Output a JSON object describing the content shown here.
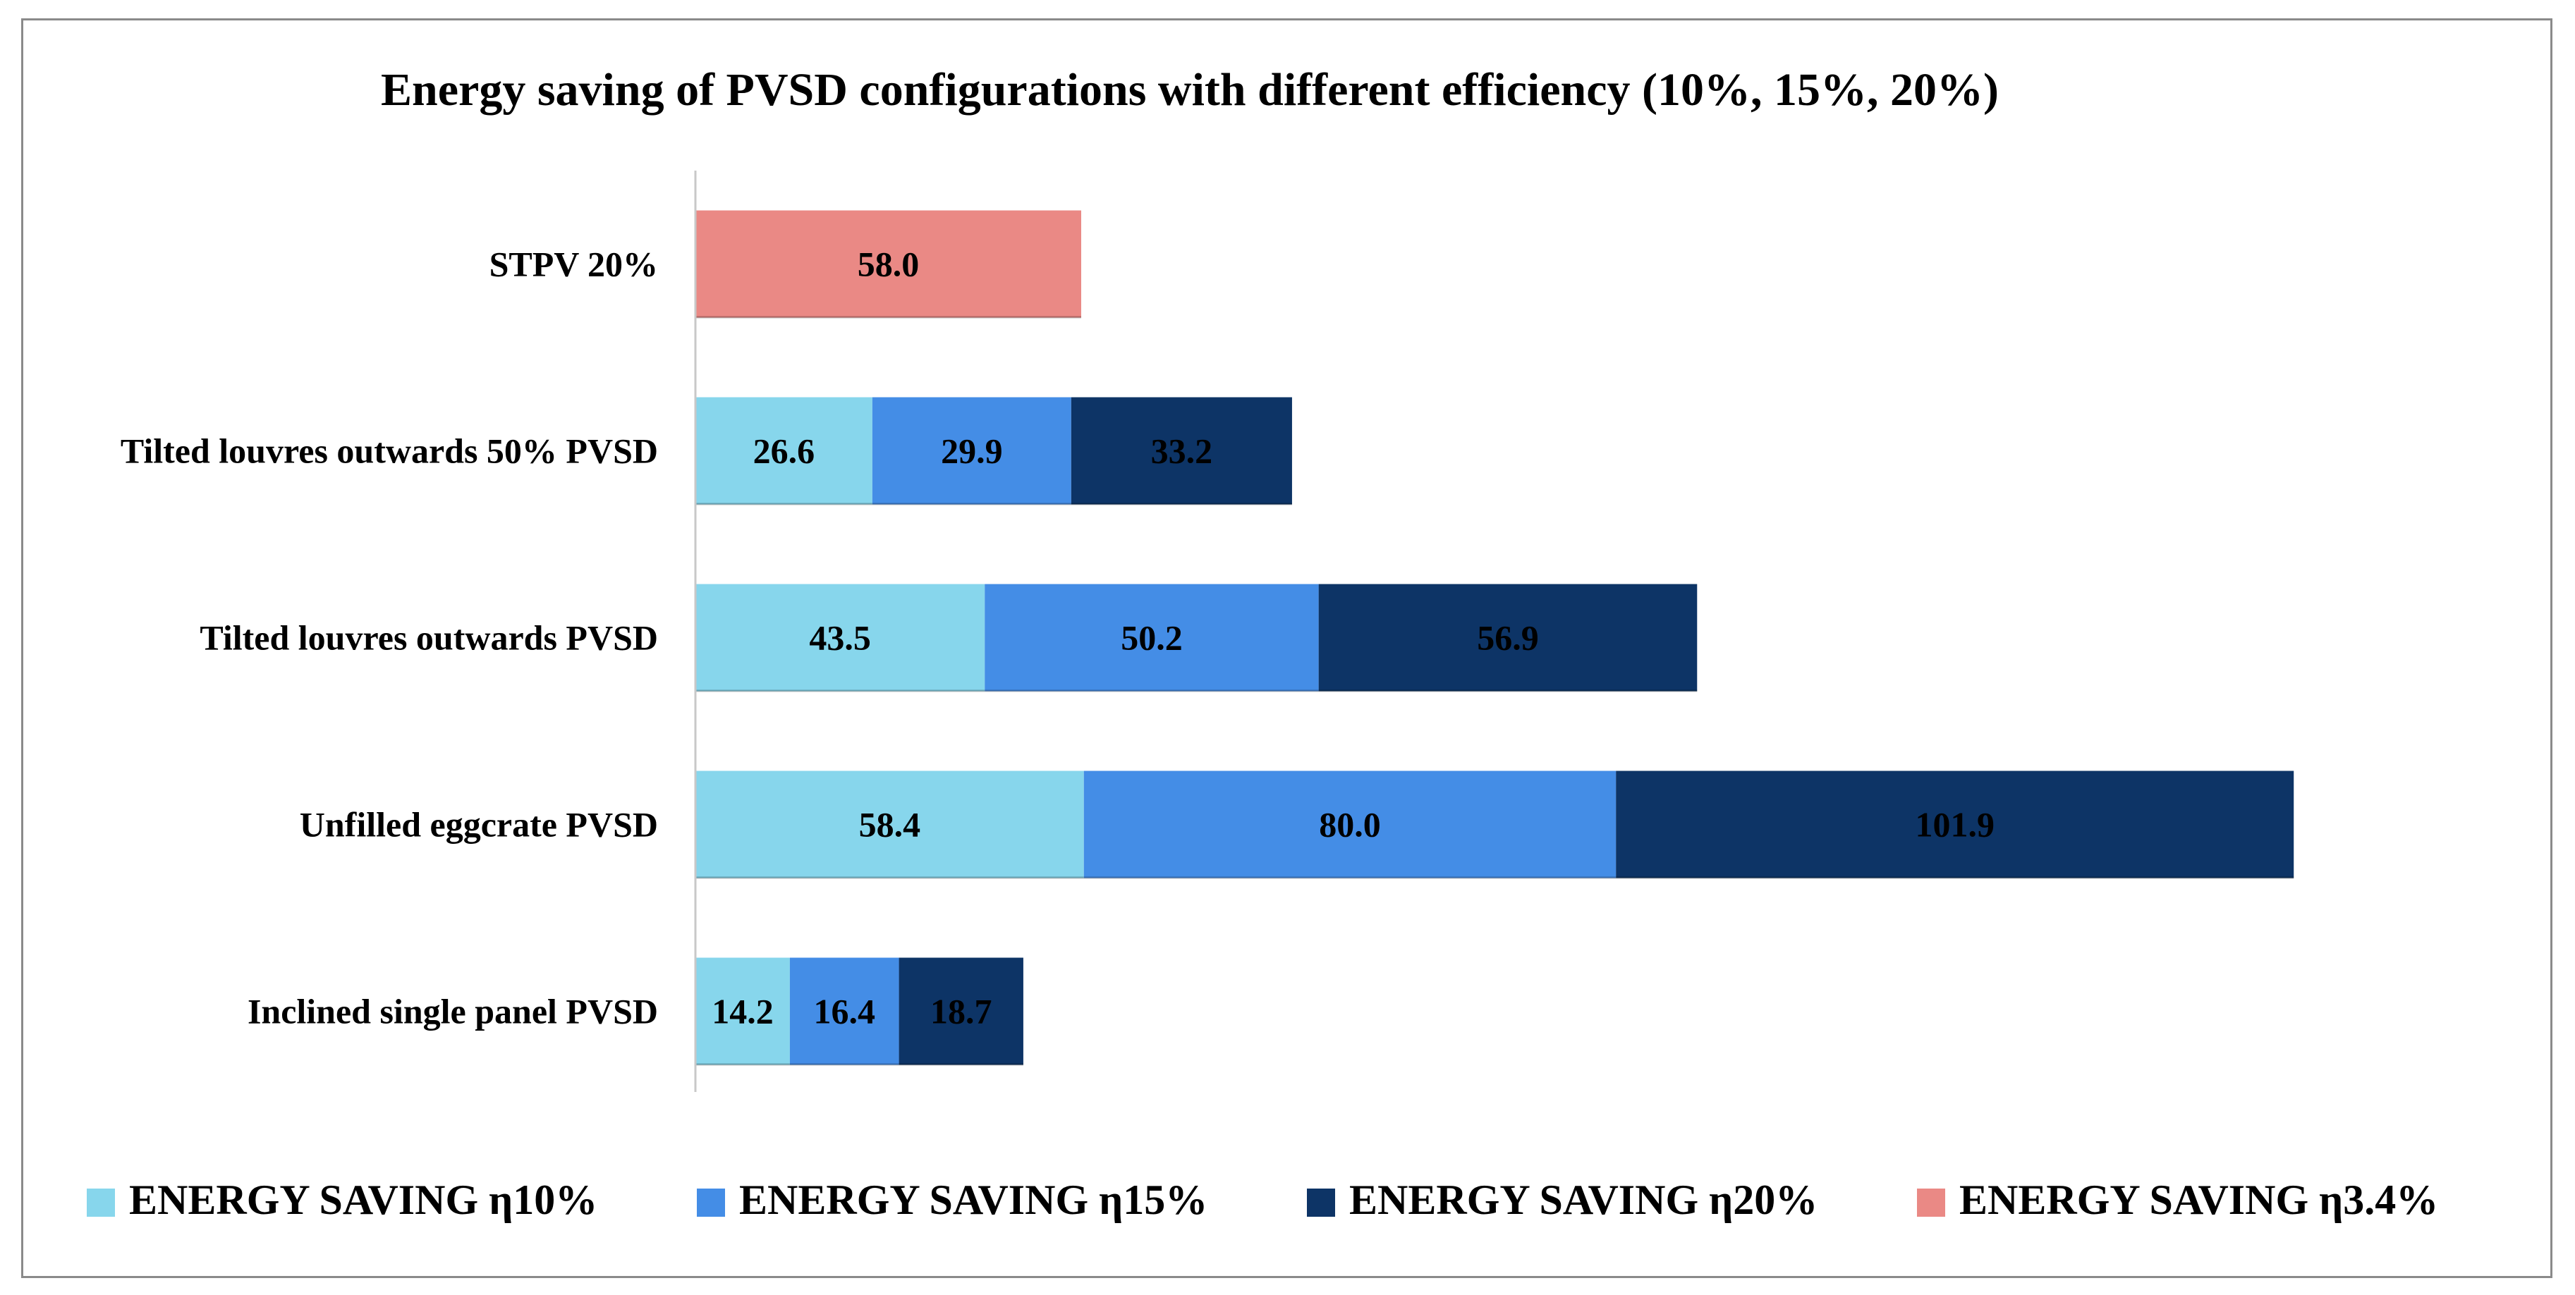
{
  "chart_data": {
    "type": "bar",
    "orientation": "horizontal",
    "stacked": true,
    "title": "Energy saving of PVSD configurations with different efficiency (10%, 15%, 20%)",
    "xlabel": "",
    "ylabel": "",
    "xlim": [
      0,
      260
    ],
    "grid": false,
    "legend_position": "bottom",
    "categories": [
      "STPV 20%",
      "Tilted louvres outwards 50% PVSD",
      "Tilted louvres outwards PVSD",
      "Unfilled eggcrate  PVSD",
      "Inclined single panel PVSD"
    ],
    "series": [
      {
        "name": "ENERGY SAVING η10%",
        "color": "#87d6ec",
        "values": [
          null,
          26.6,
          43.5,
          58.4,
          14.2
        ],
        "labels": [
          "",
          "26.6",
          "43.5",
          "58.4",
          "14.2"
        ]
      },
      {
        "name": "ENERGY SAVING η15%",
        "color": "#448de6",
        "values": [
          null,
          29.9,
          50.2,
          80.0,
          16.4
        ],
        "labels": [
          "",
          "29.9",
          "50.2",
          "80.0",
          "16.4"
        ]
      },
      {
        "name": "ENERGY SAVING η20%",
        "color": "#0d3466",
        "values": [
          null,
          33.2,
          56.9,
          101.9,
          18.7
        ],
        "labels": [
          "",
          "33.2",
          "56.9",
          "101.9",
          "18.7"
        ]
      },
      {
        "name": "ENERGY SAVING η3.4%",
        "color": "#ea8985",
        "values": [
          58.0,
          null,
          null,
          null,
          null
        ],
        "labels": [
          "58.0",
          "",
          "",
          "",
          ""
        ]
      }
    ]
  }
}
